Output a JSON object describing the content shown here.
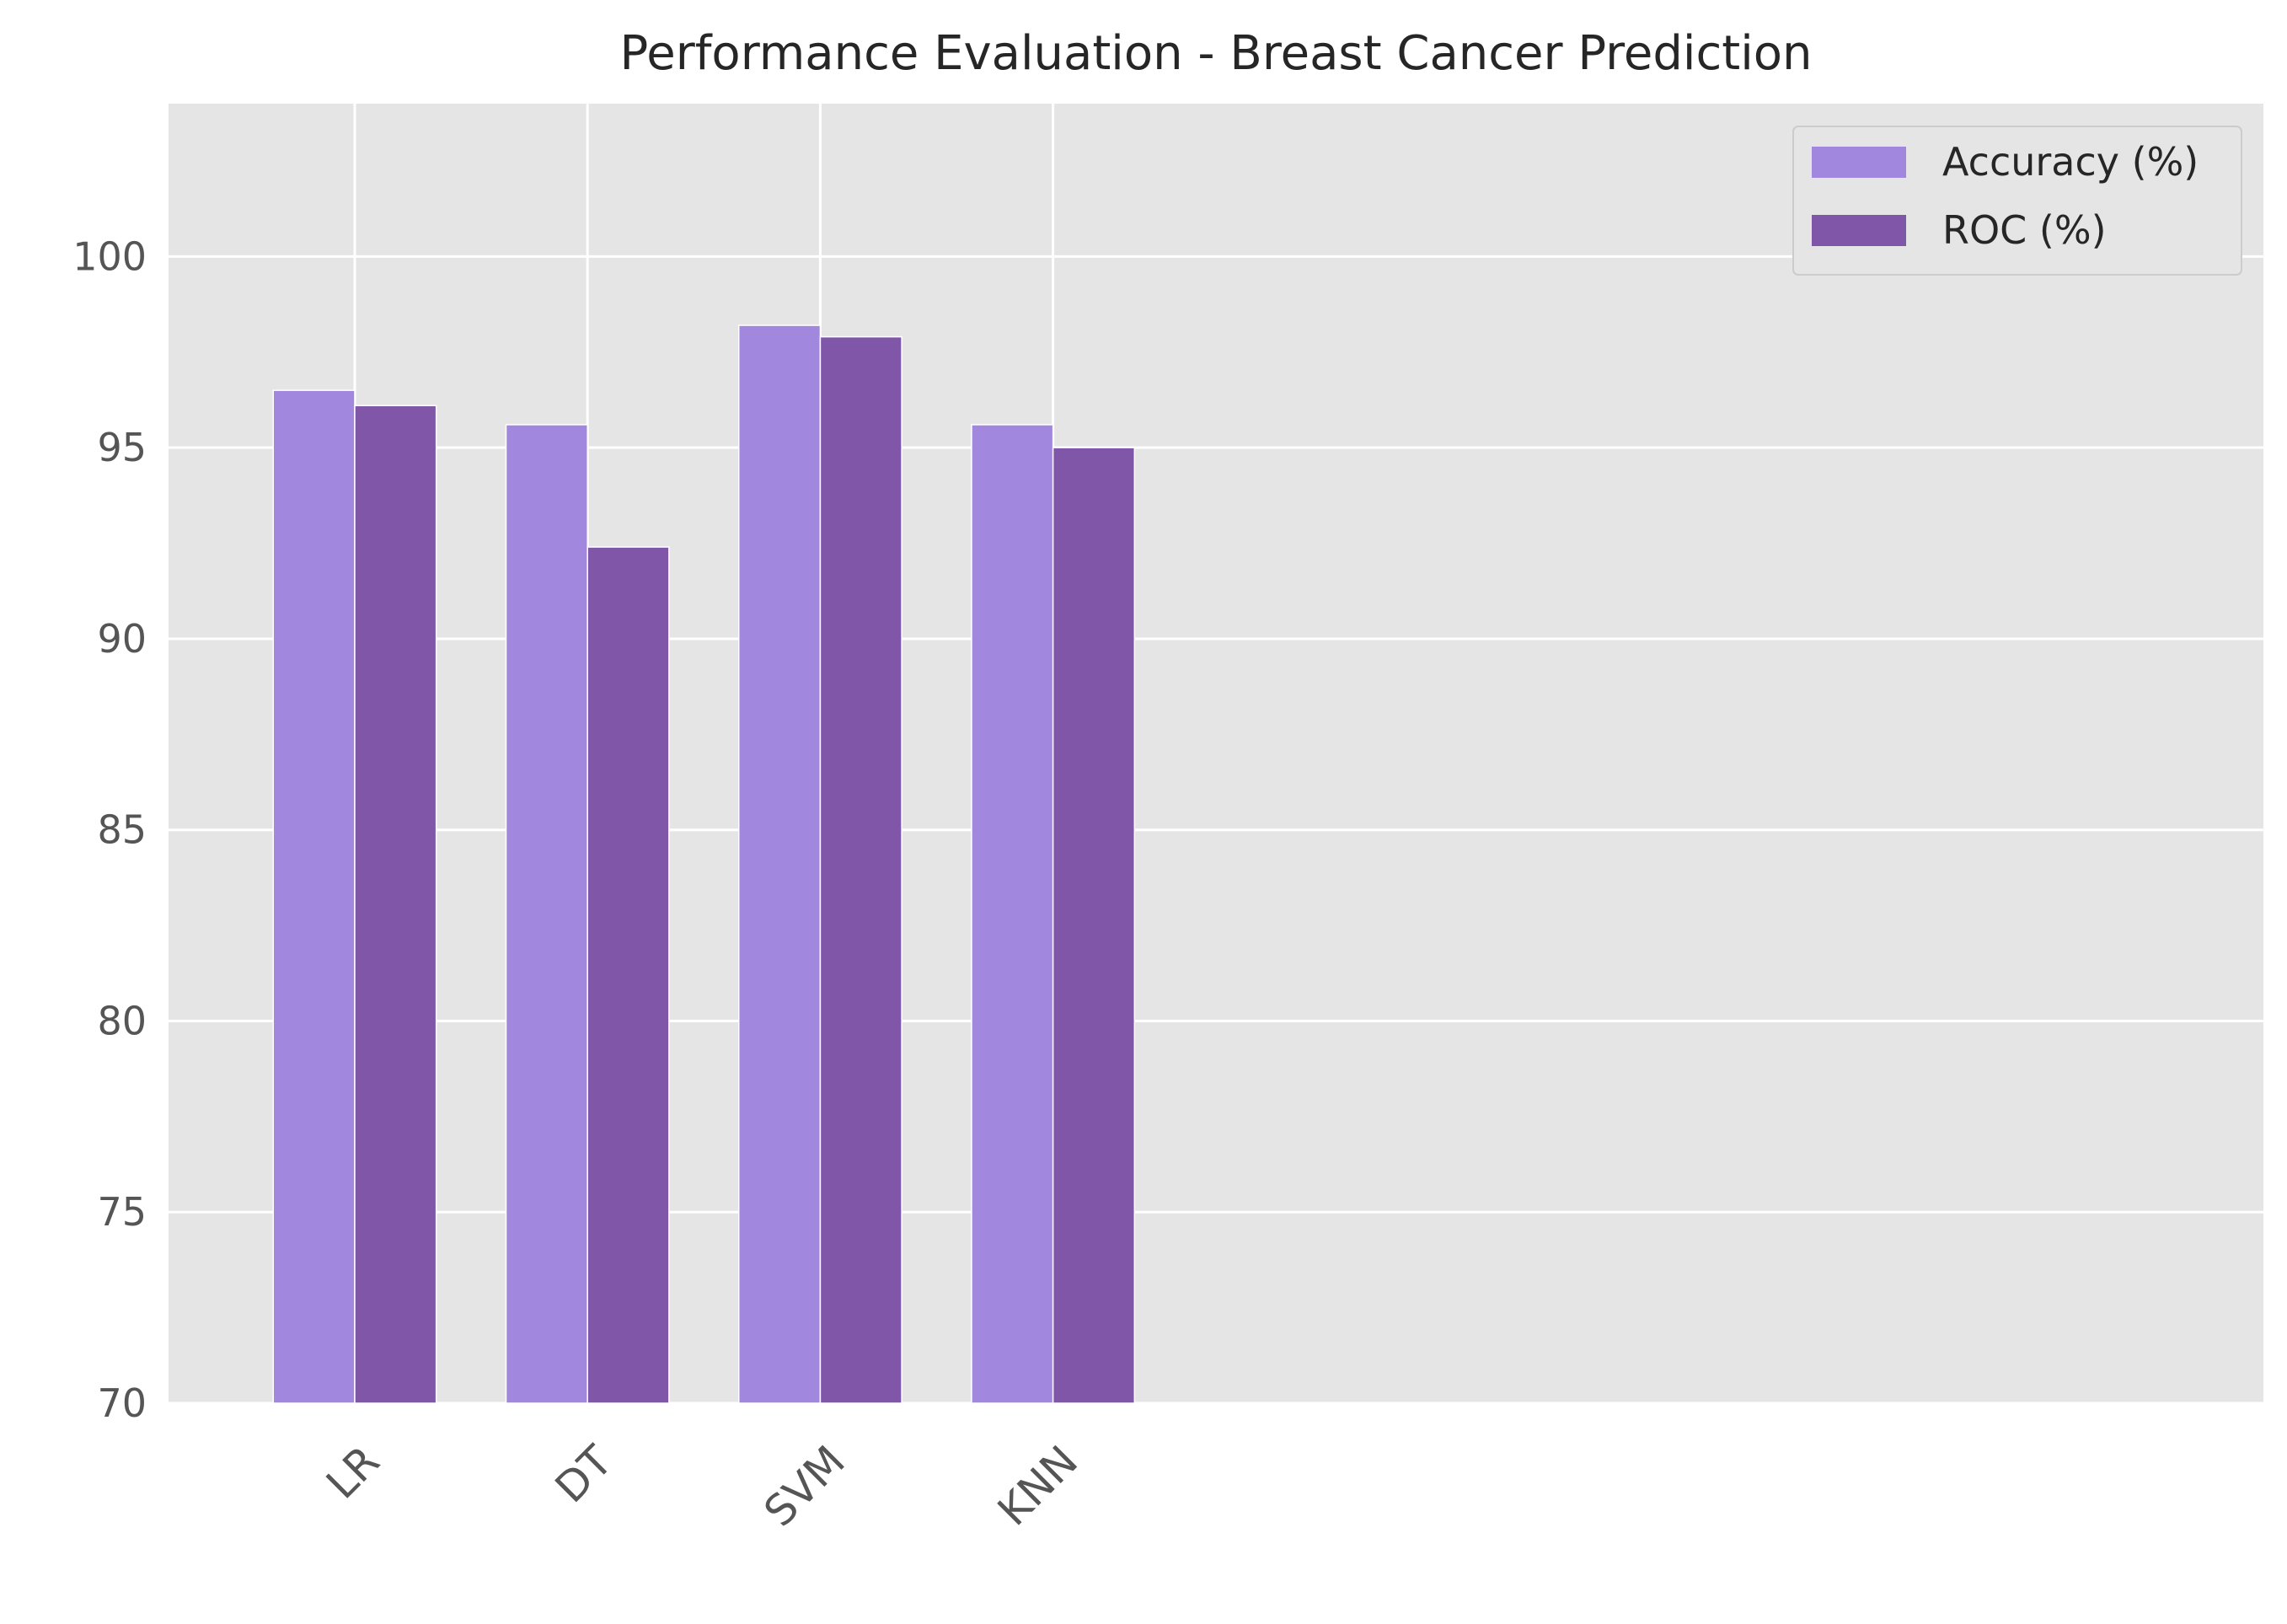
{
  "chart_data": {
    "type": "bar",
    "title": "Performance Evaluation - Breast Cancer Prediction",
    "xlabel": "",
    "ylabel": "",
    "categories": [
      "LR",
      "DT",
      "SVM",
      "KNN"
    ],
    "xlim": [
      -0.8,
      8.2
    ],
    "ylim": [
      70,
      104
    ],
    "yticks": [
      70,
      75,
      80,
      85,
      90,
      95,
      100
    ],
    "grid": true,
    "legend_position": "top-right",
    "series": [
      {
        "name": "Accuracy (%)",
        "color": "#A287DF",
        "values": [
          96.5,
          95.6,
          98.2,
          95.6
        ]
      },
      {
        "name": "ROC (%)",
        "color": "#7F56A8",
        "values": [
          96.1,
          92.4,
          97.9,
          95.0
        ]
      }
    ],
    "bar_width": 0.35,
    "background_color": "#E5E5E5",
    "grid_color": "#FFFFFF"
  }
}
